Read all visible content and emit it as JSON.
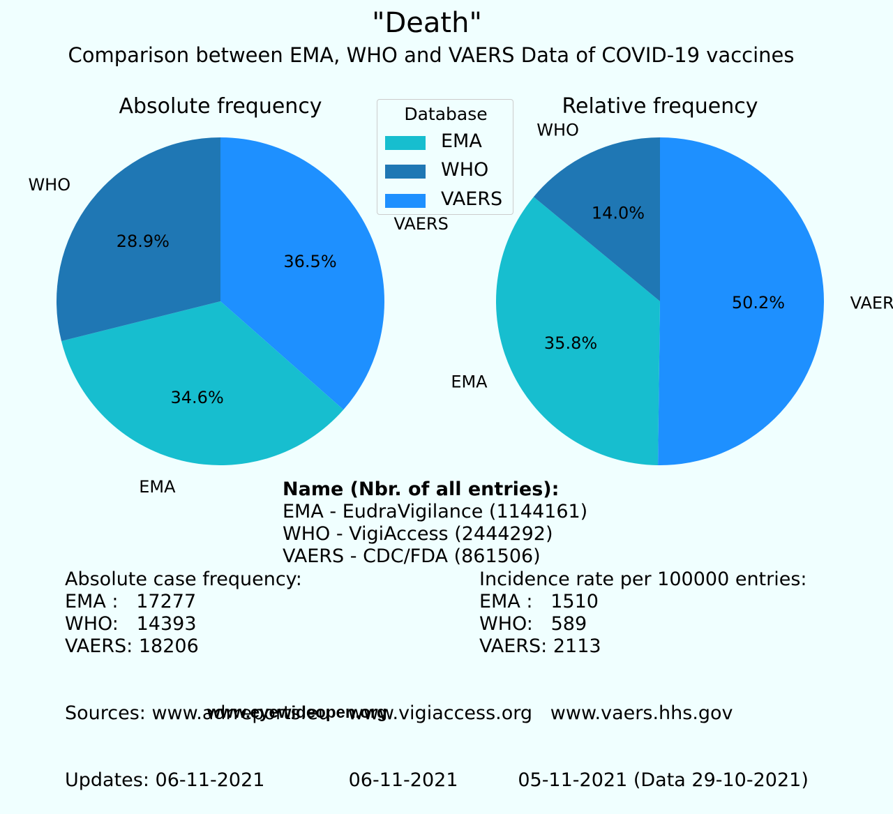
{
  "title": "\"Death\"",
  "subtitle": "Comparison between EMA, WHO and VAERS Data of COVID-19 vaccines",
  "colors": {
    "EMA": "#17becf",
    "WHO": "#1f77b4",
    "VAERS": "#1e90ff",
    "background": "#f0ffff"
  },
  "legend": {
    "title": "Database",
    "items": [
      {
        "label": "EMA",
        "color": "#17becf"
      },
      {
        "label": "WHO",
        "color": "#1f77b4"
      },
      {
        "label": "VAERS",
        "color": "#1e90ff"
      }
    ]
  },
  "chart_data": [
    {
      "type": "pie",
      "title": "Absolute frequency",
      "labels": [
        "VAERS",
        "EMA",
        "WHO"
      ],
      "values": [
        36.5,
        34.6,
        28.9
      ],
      "value_labels": [
        "36.5%",
        "34.6%",
        "28.9%"
      ]
    },
    {
      "type": "pie",
      "title": "Relative frequency",
      "labels": [
        "VAERS",
        "EMA",
        "WHO"
      ],
      "values": [
        50.2,
        35.8,
        14.0
      ],
      "value_labels": [
        "50.2%",
        "35.8%",
        "14.0%"
      ]
    }
  ],
  "info": {
    "heading": "Name  (Nbr. of all entries):",
    "lines": [
      "EMA - EudraVigilance (1144161)",
      "WHO - VigiAccess (2444292)",
      "VAERS - CDC/FDA (861506)"
    ]
  },
  "absolute": {
    "heading": "Absolute case frequency:",
    "lines": [
      "EMA :   17277",
      "WHO:   14393",
      "VAERS: 18206"
    ]
  },
  "incidence": {
    "heading": "Incidence rate per 100000 entries:",
    "lines": [
      "EMA :   1510",
      "WHO:   589",
      "VAERS: 2113"
    ]
  },
  "sources": {
    "line1": "Sources: www.adrreports.eu   www.vigiaccess.org   www.vaers.hhs.gov",
    "line2": "Updates: 06-11-2021              06-11-2021          05-11-2021 (Data 29-10-2021)"
  },
  "watermark": "www.eyewideopen.org"
}
